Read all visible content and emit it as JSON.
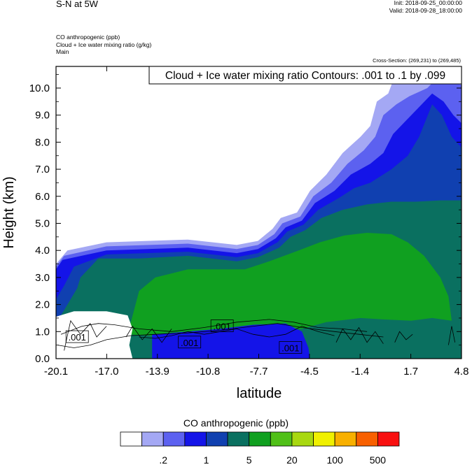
{
  "header": {
    "title": "S-N at 5W",
    "init": "Init: 2018-09-25_00:00:00",
    "valid": "Valid: 2018-09-28_18:00:00",
    "field1": "CO anthropogenic   (ppb)",
    "field2": "Cloud + Ice water mixing ratio   (g/kg)",
    "field3": "Main",
    "cross_section": "Cross-Section: (269,231) to (269,485)"
  },
  "chart_data": {
    "type": "heatmap",
    "title": "",
    "xlabel": "latitude",
    "ylabel": "Height (km)",
    "contour_label": "Cloud + Ice water mixing ratio Contours: .001 to .1 by .099",
    "x_ticks": [
      "-20.1",
      "-17.0",
      "-13.9",
      "-10.8",
      "-7.7",
      "-4.5",
      "-1.4",
      "1.7",
      "4.8"
    ],
    "y_ticks": [
      "0.0",
      "1.0",
      "2.0",
      "3.0",
      "4.0",
      "5.0",
      "6.0",
      "7.0",
      "8.0",
      "9.0",
      "10.0"
    ],
    "xlim": [
      -20.1,
      4.8
    ],
    "ylim": [
      0,
      10.8
    ],
    "contour_line_labels": [
      {
        "text": ".001",
        "lat": -18.8,
        "height": 0.8
      },
      {
        "text": ".001",
        "lat": -11.9,
        "height": 0.6
      },
      {
        "text": ".001",
        "lat": -9.9,
        "height": 1.2
      },
      {
        "text": ".001",
        "lat": -5.7,
        "height": 0.4
      }
    ],
    "colorbar": {
      "title": "CO anthropogenic  (ppb)",
      "colors": [
        "#ffffff",
        "#a4a8f4",
        "#5c61f0",
        "#1414e8",
        "#1040b0",
        "#0a7060",
        "#10a020",
        "#50c018",
        "#a8d810",
        "#f0f000",
        "#f8b000",
        "#f86000",
        "#f81010"
      ],
      "tick_labels": [
        ".2",
        "1",
        "5",
        "20",
        "100",
        "500"
      ]
    },
    "fill_regions": [
      {
        "level": 1,
        "points": [
          [
            -20.1,
            0
          ],
          [
            -20.1,
            3.5
          ],
          [
            -19.4,
            4.0
          ],
          [
            -17.0,
            4.3
          ],
          [
            -12.0,
            4.4
          ],
          [
            -9.0,
            4.2
          ],
          [
            -7.7,
            4.35
          ],
          [
            -6.8,
            4.8
          ],
          [
            -6.3,
            5.2
          ],
          [
            -5.3,
            5.4
          ],
          [
            -4.5,
            6.2
          ],
          [
            -3.5,
            6.8
          ],
          [
            -2.5,
            7.6
          ],
          [
            -1.4,
            8.2
          ],
          [
            -0.8,
            8.6
          ],
          [
            -0.4,
            9.5
          ],
          [
            0.3,
            9.8
          ],
          [
            0.8,
            10.6
          ],
          [
            1.7,
            10.8
          ],
          [
            4.8,
            10.8
          ],
          [
            4.8,
            0
          ]
        ]
      },
      {
        "level": 2,
        "points": [
          [
            -20.1,
            0
          ],
          [
            -20.1,
            3.4
          ],
          [
            -19.6,
            3.8
          ],
          [
            -17.0,
            4.15
          ],
          [
            -12.0,
            4.25
          ],
          [
            -9.0,
            4.05
          ],
          [
            -7.7,
            4.2
          ],
          [
            -6.7,
            4.6
          ],
          [
            -6.2,
            5.0
          ],
          [
            -5.1,
            5.25
          ],
          [
            -4.3,
            6.0
          ],
          [
            -3.2,
            6.5
          ],
          [
            -2.2,
            7.2
          ],
          [
            -1.2,
            7.7
          ],
          [
            -0.5,
            8.2
          ],
          [
            0.0,
            9.0
          ],
          [
            0.8,
            9.4
          ],
          [
            1.6,
            9.7
          ],
          [
            2.7,
            10.0
          ],
          [
            3.5,
            10.5
          ],
          [
            4.3,
            10.3
          ],
          [
            4.8,
            10.1
          ],
          [
            4.8,
            0
          ]
        ]
      },
      {
        "level": 3,
        "points": [
          [
            -20.1,
            0
          ],
          [
            -20.1,
            3.3
          ],
          [
            -19.7,
            3.65
          ],
          [
            -17.0,
            4.0
          ],
          [
            -12.0,
            4.1
          ],
          [
            -9.0,
            3.9
          ],
          [
            -7.7,
            4.05
          ],
          [
            -6.6,
            4.45
          ],
          [
            -6.0,
            4.85
          ],
          [
            -5.0,
            5.1
          ],
          [
            -4.2,
            5.75
          ],
          [
            -3.0,
            6.2
          ],
          [
            -2.0,
            6.8
          ],
          [
            -0.8,
            7.2
          ],
          [
            0.0,
            7.6
          ],
          [
            0.6,
            8.3
          ],
          [
            1.4,
            8.8
          ],
          [
            2.2,
            9.3
          ],
          [
            3.0,
            9.8
          ],
          [
            3.7,
            9.5
          ],
          [
            4.3,
            9.0
          ],
          [
            4.8,
            8.7
          ],
          [
            4.8,
            0
          ]
        ]
      },
      {
        "level": 4,
        "points": [
          [
            -20.1,
            0
          ],
          [
            -20.1,
            2.2
          ],
          [
            -19.6,
            2.7
          ],
          [
            -19.0,
            3.4
          ],
          [
            -17.0,
            3.85
          ],
          [
            -12.0,
            3.95
          ],
          [
            -9.0,
            3.75
          ],
          [
            -7.7,
            3.9
          ],
          [
            -6.5,
            4.3
          ],
          [
            -5.9,
            4.7
          ],
          [
            -4.9,
            4.95
          ],
          [
            -4.0,
            5.5
          ],
          [
            -2.7,
            5.95
          ],
          [
            -1.8,
            6.3
          ],
          [
            -0.8,
            6.5
          ],
          [
            0.5,
            7.0
          ],
          [
            1.5,
            7.5
          ],
          [
            2.2,
            8.2
          ],
          [
            3.0,
            9.4
          ],
          [
            3.6,
            9.0
          ],
          [
            4.2,
            8.2
          ],
          [
            4.8,
            7.8
          ],
          [
            4.8,
            0
          ]
        ]
      },
      {
        "level": 5,
        "points": [
          [
            -20.1,
            0
          ],
          [
            -20.1,
            1.3
          ],
          [
            -19.5,
            1.9
          ],
          [
            -18.8,
            2.6
          ],
          [
            -18.6,
            3.0
          ],
          [
            -17.5,
            3.7
          ],
          [
            -15.0,
            3.7
          ],
          [
            -12.0,
            3.8
          ],
          [
            -9.0,
            3.6
          ],
          [
            -7.7,
            3.75
          ],
          [
            -6.4,
            4.1
          ],
          [
            -5.7,
            4.5
          ],
          [
            -4.8,
            4.75
          ],
          [
            -3.8,
            5.2
          ],
          [
            -2.5,
            5.5
          ],
          [
            -1.0,
            5.7
          ],
          [
            0.5,
            5.8
          ],
          [
            2.0,
            5.8
          ],
          [
            3.5,
            5.85
          ],
          [
            4.8,
            5.85
          ],
          [
            4.8,
            0
          ]
        ]
      },
      {
        "level": 6,
        "points": [
          [
            -15.7,
            0.9
          ],
          [
            -15.0,
            2.5
          ],
          [
            -14.0,
            3.0
          ],
          [
            -12.0,
            3.3
          ],
          [
            -10.0,
            3.3
          ],
          [
            -8.5,
            3.3
          ],
          [
            -7.0,
            3.6
          ],
          [
            -5.2,
            4.0
          ],
          [
            -3.9,
            4.3
          ],
          [
            -2.4,
            4.55
          ],
          [
            -1.0,
            4.65
          ],
          [
            0.5,
            4.6
          ],
          [
            1.5,
            4.3
          ],
          [
            2.5,
            3.8
          ],
          [
            3.5,
            3.0
          ],
          [
            4.0,
            2.3
          ],
          [
            4.2,
            1.4
          ],
          [
            3.0,
            1.5
          ],
          [
            1.7,
            1.4
          ],
          [
            0.0,
            1.45
          ],
          [
            -1.4,
            1.5
          ],
          [
            -3.5,
            1.35
          ],
          [
            -5.0,
            1.1
          ],
          [
            -7.0,
            1.0
          ],
          [
            -9.0,
            0.9
          ],
          [
            -11.0,
            0.8
          ],
          [
            -13.0,
            0.8
          ]
        ]
      },
      {
        "level": 3,
        "points": [
          [
            -14.2,
            0
          ],
          [
            -14.2,
            0.9
          ],
          [
            -12.0,
            1.0
          ],
          [
            -10.0,
            1.1
          ],
          [
            -8.0,
            1.25
          ],
          [
            -6.0,
            1.3
          ],
          [
            -5.0,
            1.0
          ],
          [
            -4.6,
            0.4
          ],
          [
            -4.5,
            0
          ]
        ]
      }
    ],
    "unfilled_region": {
      "points": [
        [
          -20.1,
          0
        ],
        [
          -20.1,
          1.55
        ],
        [
          -19.0,
          1.75
        ],
        [
          -17.0,
          1.75
        ],
        [
          -15.7,
          1.6
        ],
        [
          -15.4,
          1.1
        ],
        [
          -15.6,
          0.5
        ],
        [
          -15.4,
          0
        ]
      ]
    },
    "contour_lines": [
      [
        [
          -20.0,
          0.5
        ],
        [
          -19.0,
          0.4
        ],
        [
          -18.0,
          0.5
        ],
        [
          -17.0,
          0.7
        ],
        [
          -15.5,
          0.85
        ],
        [
          -14.0,
          0.9
        ],
        [
          -12.0,
          0.95
        ],
        [
          -10.0,
          1.05
        ],
        [
          -8.0,
          1.2
        ],
        [
          -6.5,
          1.3
        ],
        [
          -5.0,
          1.15
        ],
        [
          -3.0,
          1.0
        ],
        [
          -1.5,
          0.9
        ],
        [
          0.0,
          0.8
        ]
      ],
      [
        [
          -19.8,
          0.9
        ],
        [
          -18.5,
          1.2
        ],
        [
          -17.5,
          1.3
        ],
        [
          -16.5,
          1.25
        ],
        [
          -15.0,
          1.1
        ],
        [
          -13.0,
          1.0
        ],
        [
          -11.0,
          1.15
        ],
        [
          -9.0,
          1.35
        ],
        [
          -7.0,
          1.45
        ],
        [
          -5.5,
          1.35
        ],
        [
          -4.0,
          1.15
        ],
        [
          -2.5,
          1.1
        ],
        [
          -1.0,
          1.0
        ]
      ],
      [
        [
          -15.0,
          0.8
        ],
        [
          -14.0,
          0.75
        ],
        [
          -13.0,
          0.85
        ],
        [
          -12.0,
          1.0
        ],
        [
          -11.0,
          0.9
        ],
        [
          -10.0,
          1.0
        ],
        [
          -9.0,
          1.1
        ],
        [
          -8.0,
          0.9
        ],
        [
          -7.0,
          0.8
        ],
        [
          -6.0,
          0.9
        ],
        [
          -5.0,
          1.2
        ],
        [
          -4.0,
          1.0
        ],
        [
          -3.0,
          0.85
        ]
      ],
      [
        [
          -19.6,
          0.3
        ],
        [
          -19.2,
          1.4
        ],
        [
          -18.6,
          0.9
        ],
        [
          -18.0,
          1.3
        ],
        [
          -17.6,
          0.8
        ],
        [
          -17.0,
          1.2
        ]
      ],
      [
        [
          -15.8,
          0.8
        ],
        [
          -15.4,
          1.2
        ],
        [
          -14.8,
          0.7
        ],
        [
          -14.2,
          1.1
        ],
        [
          -13.6,
          0.6
        ],
        [
          -13.0,
          1.1
        ]
      ],
      [
        [
          -2.9,
          0.6
        ],
        [
          -2.5,
          1.1
        ],
        [
          -2.0,
          0.7
        ],
        [
          -1.5,
          1.15
        ],
        [
          -1.0,
          0.6
        ],
        [
          -0.5,
          1.0
        ],
        [
          0.0,
          0.55
        ]
      ],
      [
        [
          0.7,
          0.6
        ],
        [
          1.0,
          1.0
        ],
        [
          1.4,
          0.7
        ],
        [
          1.8,
          0.9
        ]
      ],
      [
        [
          4.0,
          0.5
        ],
        [
          4.2,
          1.2
        ],
        [
          4.4,
          0.6
        ]
      ]
    ]
  }
}
